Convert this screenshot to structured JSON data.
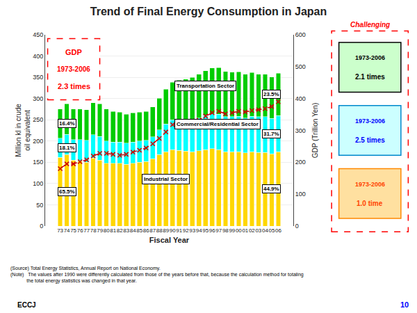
{
  "chart_data": {
    "type": "bar",
    "stacked": true,
    "title": "Trend of Final Energy Consumption in Japan",
    "xlabel": "Fiscal Year",
    "ylabel": "Million kl in crude\noil equivalent",
    "y2label": "GDP (Trillion Yen)",
    "categories": [
      "73",
      "74",
      "75",
      "76",
      "77",
      "78",
      "79",
      "80",
      "81",
      "82",
      "83",
      "84",
      "85",
      "86",
      "87",
      "88",
      "89",
      "90",
      "91",
      "92",
      "93",
      "94",
      "95",
      "96",
      "97",
      "98",
      "99",
      "00",
      "01",
      "02",
      "03",
      "04",
      "05",
      "06"
    ],
    "series": [
      {
        "color": "#FFD700",
        "values": [
          162,
          168,
          155,
          153,
          150,
          160,
          155,
          148,
          148,
          148,
          145,
          148,
          150,
          152,
          158,
          168,
          175,
          180,
          178,
          176,
          175,
          177,
          180,
          182,
          180,
          175,
          175,
          175,
          172,
          175,
          173,
          173,
          170,
          175
        ]
      },
      {
        "color": "#00FFFF",
        "values": [
          45,
          48,
          48,
          50,
          52,
          55,
          56,
          52,
          50,
          50,
          50,
          50,
          50,
          50,
          52,
          58,
          65,
          70,
          72,
          73,
          75,
          77,
          80,
          82,
          83,
          82,
          82,
          83,
          82,
          83,
          84,
          84,
          83,
          85
        ]
      },
      {
        "color": "#00CC00",
        "values": [
          68,
          72,
          72,
          72,
          72,
          75,
          77,
          75,
          72,
          70,
          68,
          68,
          68,
          68,
          70,
          75,
          82,
          88,
          93,
          97,
          100,
          103,
          105,
          108,
          110,
          107,
          105,
          105,
          103,
          103,
          100,
          100,
          98,
          100
        ]
      },
      {
        "type": "line",
        "axis": "y2",
        "color": "#CC0000",
        "line_style": "dashed",
        "marker": "x",
        "values": [
          180,
          195,
          195,
          202,
          208,
          220,
          228,
          228,
          225,
          222,
          225,
          232,
          238,
          245,
          258,
          275,
          295,
          318,
          325,
          328,
          330,
          332,
          345,
          355,
          360,
          352,
          355,
          360,
          358,
          362,
          365,
          368,
          375,
          390
        ]
      }
    ],
    "ylim": [
      0,
      450
    ],
    "yticks": [
      0,
      50,
      100,
      150,
      200,
      250,
      300,
      350,
      400,
      450
    ],
    "y2lim": [
      0,
      600
    ],
    "y2ticks": [
      0,
      100,
      200,
      300,
      400,
      500,
      600
    ],
    "grid": true,
    "annotations": [
      "Transportation Sector",
      "Commercial/Residential Sector",
      "Industrial Sector",
      "16.4%",
      "18.1%",
      "65.5%",
      "44.9%",
      "31.7%",
      "23.5%",
      "GDP",
      "1973-2006",
      "2.3 times",
      "1973-2006",
      "2.1 times",
      "1973-2006",
      "2.5 times",
      "1973-2006",
      "1.0 time",
      "Challenging",
      "(Source) Total Energy Statistics, Annual Report on National Economy.\n(Note)   The values after 1990 were differently calculated from those of the years before that, because the calculation method for totaling\n            the total energy statistics was changed in that year.",
      "10",
      "ECCJ"
    ]
  }
}
